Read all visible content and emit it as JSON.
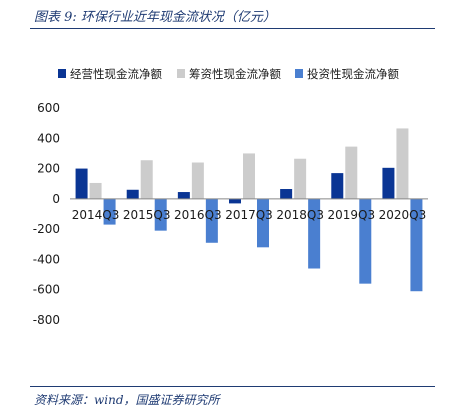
{
  "caption": "图表 9:  环保行业近年现金流状况（亿元）",
  "source": "资料来源：wind，国盛证券研究所",
  "colors": {
    "operating": "#0a3594",
    "financing": "#cccccc",
    "investing": "#4a7fd0",
    "accent": "#1f3b73"
  },
  "chart_data": {
    "type": "bar",
    "title": "",
    "xlabel": "",
    "ylabel": "",
    "categories": [
      "2014Q3",
      "2015Q3",
      "2016Q3",
      "2017Q3",
      "2018Q3",
      "2019Q3",
      "2020Q3"
    ],
    "series": [
      {
        "name": "经营性现金流净额",
        "values": [
          200,
          60,
          45,
          -30,
          65,
          170,
          205
        ]
      },
      {
        "name": "筹资性现金流净额",
        "values": [
          105,
          255,
          240,
          300,
          265,
          345,
          465
        ]
      },
      {
        "name": "投资性现金流净额",
        "values": [
          -170,
          -210,
          -290,
          -320,
          -460,
          -560,
          -610
        ]
      }
    ],
    "ylim": [
      -800,
      600
    ],
    "yticks": [
      600,
      400,
      200,
      0,
      -200,
      -400,
      -600,
      -800
    ],
    "legend_position": "top",
    "grid": false
  }
}
